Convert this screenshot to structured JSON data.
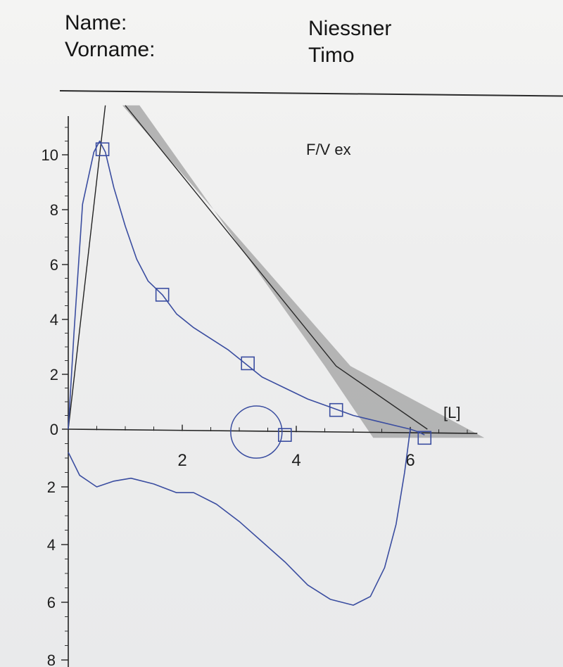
{
  "header": {
    "name_label": "Name:",
    "vorname_label": "Vorname:",
    "name_value": "Niessner",
    "vorname_value": "Timo"
  },
  "chart_data": {
    "type": "line",
    "title": "F/V ex",
    "xlabel": "[L]",
    "x_ticks": [
      2,
      4,
      6
    ],
    "y_ticks_up": [
      10,
      8,
      6,
      4,
      2,
      0
    ],
    "y_ticks_down": [
      2,
      4,
      6,
      8
    ],
    "xlim": [
      0,
      7.3
    ],
    "ylim": [
      -8,
      11
    ],
    "series": [
      {
        "role": "expiratory-flow-volume-curve",
        "x": [
          0.0,
          0.1,
          0.25,
          0.45,
          0.55,
          0.65,
          0.8,
          1.0,
          1.2,
          1.4,
          1.65,
          1.9,
          2.2,
          2.5,
          2.8,
          3.1,
          3.4,
          3.8,
          4.2,
          4.6,
          5.0,
          5.4,
          5.8,
          6.0,
          6.15,
          6.25
        ],
        "y": [
          0.0,
          3.5,
          8.2,
          10.1,
          10.5,
          10.1,
          8.8,
          7.4,
          6.2,
          5.4,
          4.9,
          4.2,
          3.7,
          3.3,
          2.9,
          2.4,
          1.9,
          1.5,
          1.1,
          0.8,
          0.5,
          0.3,
          0.1,
          0.0,
          -0.1,
          -0.2
        ],
        "color": "#3a4da0"
      },
      {
        "role": "inspiratory-curve",
        "x": [
          0.0,
          0.2,
          0.5,
          0.8,
          1.1,
          1.5,
          1.9,
          2.2,
          2.6,
          3.0,
          3.4,
          3.8,
          4.2,
          4.6,
          5.0,
          5.3,
          5.55,
          5.75,
          5.9,
          6.0
        ],
        "y": [
          -0.8,
          -1.6,
          -2.0,
          -1.8,
          -1.7,
          -1.9,
          -2.2,
          -2.2,
          -2.6,
          -3.2,
          -3.9,
          -4.6,
          -5.4,
          -5.9,
          -6.1,
          -5.8,
          -4.8,
          -3.3,
          -1.5,
          0.0
        ],
        "color": "#3a4da0"
      },
      {
        "role": "predicted-reference-line",
        "x": [
          1.0,
          4.7,
          6.3
        ],
        "y": [
          11.8,
          2.3,
          0.0
        ],
        "color": "#2b2b2b"
      },
      {
        "role": "reference-band-upper",
        "x": [
          0.95,
          4.95,
          7.3
        ],
        "y": [
          11.8,
          2.3,
          -0.3
        ],
        "color": "#a9a9a9"
      },
      {
        "role": "reference-band-lower",
        "x": [
          1.25,
          4.5,
          5.35
        ],
        "y": [
          11.8,
          2.3,
          -0.3
        ],
        "color": "#a9a9a9"
      }
    ],
    "markers": {
      "shape": "open-square",
      "points": [
        [
          0.6,
          10.2
        ],
        [
          1.65,
          4.9
        ],
        [
          3.15,
          2.4
        ],
        [
          4.7,
          0.7
        ],
        [
          3.8,
          -0.2
        ],
        [
          6.25,
          -0.3
        ]
      ]
    },
    "small_loop": {
      "center": [
        3.3,
        -0.1
      ],
      "rx": 0.45,
      "ry": 0.95
    },
    "initial_slope_line": {
      "x": [
        0.0,
        0.65
      ],
      "y": [
        0.0,
        11.8
      ]
    },
    "grid": false
  }
}
